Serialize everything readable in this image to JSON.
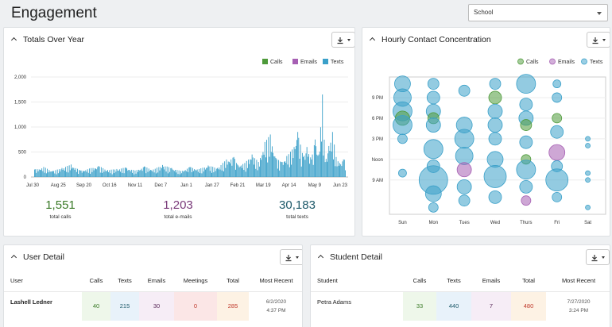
{
  "page": {
    "title": "Engagement"
  },
  "filter": {
    "selected": "School"
  },
  "totals_card": {
    "title": "Totals Over Year",
    "stats": [
      {
        "value": "1,551",
        "label": "total calls",
        "color": "#3a7a27"
      },
      {
        "value": "1,203",
        "label": "total e-mails",
        "color": "#7a3a7a"
      },
      {
        "value": "30,183",
        "label": "total texts",
        "color": "#1e5a6a"
      }
    ]
  },
  "hourly_card": {
    "title": "Hourly Contact Concentration"
  },
  "user_detail": {
    "title": "User Detail",
    "headers": [
      "User",
      "Calls",
      "Texts",
      "Emails",
      "Meetings",
      "Total",
      "Most Recent"
    ],
    "rows": [
      {
        "name": "Lashell Ledner",
        "calls": "40",
        "texts": "215",
        "emails": "30",
        "meetings": "0",
        "total": "285",
        "recent_date": "6/2/2020",
        "recent_time": "4:37 PM"
      }
    ]
  },
  "student_detail": {
    "title": "Student Detail",
    "headers": [
      "Student",
      "Calls",
      "Texts",
      "Emails",
      "Total",
      "Most Recent"
    ],
    "rows": [
      {
        "name": "Petra Adams",
        "calls": "33",
        "texts": "440",
        "emails": "7",
        "total": "480",
        "recent_date": "7/27/2020",
        "recent_time": "3:24 PM"
      }
    ]
  },
  "colors": {
    "calls": "#4e9a3a",
    "emails": "#a65fb3",
    "texts": "#3aa0c9"
  },
  "chart_data": [
    {
      "type": "bar",
      "title": "",
      "legend": [
        "Calls",
        "Emails",
        "Texts"
      ],
      "legend_position": "top-right",
      "x_tick_labels": [
        "Jul 30",
        "Aug 25",
        "Sep 20",
        "Oct 16",
        "Nov 11",
        "Dec 7",
        "Jan 1",
        "Jan 27",
        "Feb 21",
        "Mar 19",
        "Apr 14",
        "May 9",
        "Jun 23"
      ],
      "y_tick_labels": [
        "0",
        "500",
        "1,000",
        "1,500",
        "2,000"
      ],
      "ylim": [
        0,
        2000
      ],
      "x_days": 340,
      "series": [
        {
          "name": "Texts",
          "values": [
            {
              "x": 0,
              "y": 150
            },
            {
              "x": 10,
              "y": 200
            },
            {
              "x": 20,
              "y": 120
            },
            {
              "x": 30,
              "y": 180
            },
            {
              "x": 40,
              "y": 250
            },
            {
              "x": 50,
              "y": 130
            },
            {
              "x": 60,
              "y": 170
            },
            {
              "x": 70,
              "y": 220
            },
            {
              "x": 80,
              "y": 140
            },
            {
              "x": 90,
              "y": 160
            },
            {
              "x": 100,
              "y": 190
            },
            {
              "x": 110,
              "y": 130
            },
            {
              "x": 120,
              "y": 210
            },
            {
              "x": 130,
              "y": 150
            },
            {
              "x": 140,
              "y": 240
            },
            {
              "x": 150,
              "y": 180
            },
            {
              "x": 160,
              "y": 120
            },
            {
              "x": 170,
              "y": 200
            },
            {
              "x": 180,
              "y": 160
            },
            {
              "x": 190,
              "y": 230
            },
            {
              "x": 200,
              "y": 180
            },
            {
              "x": 210,
              "y": 350
            },
            {
              "x": 218,
              "y": 400
            },
            {
              "x": 222,
              "y": 250
            },
            {
              "x": 230,
              "y": 280
            },
            {
              "x": 238,
              "y": 450
            },
            {
              "x": 245,
              "y": 300
            },
            {
              "x": 252,
              "y": 700
            },
            {
              "x": 258,
              "y": 850
            },
            {
              "x": 264,
              "y": 380
            },
            {
              "x": 270,
              "y": 300
            },
            {
              "x": 276,
              "y": 420
            },
            {
              "x": 282,
              "y": 550
            },
            {
              "x": 288,
              "y": 900
            },
            {
              "x": 294,
              "y": 400
            },
            {
              "x": 298,
              "y": 600
            },
            {
              "x": 303,
              "y": 350
            },
            {
              "x": 307,
              "y": 750
            },
            {
              "x": 311,
              "y": 450
            },
            {
              "x": 315,
              "y": 1650
            },
            {
              "x": 318,
              "y": 300
            },
            {
              "x": 322,
              "y": 620
            },
            {
              "x": 326,
              "y": 900
            },
            {
              "x": 330,
              "y": 400
            },
            {
              "x": 334,
              "y": 280
            },
            {
              "x": 338,
              "y": 350
            }
          ]
        }
      ]
    },
    {
      "type": "scatter",
      "title": "",
      "legend": [
        "Calls",
        "Emails",
        "Texts"
      ],
      "legend_position": "top-right",
      "x_categories": [
        "Sun",
        "Mon",
        "Tues",
        "Wed",
        "Thurs",
        "Fri",
        "Sat"
      ],
      "y_tick_labels": [
        "9 AM",
        "Noon",
        "3 PM",
        "6 PM",
        "9 PM"
      ],
      "y_tick_hours": [
        9,
        12,
        15,
        18,
        21
      ],
      "points": [
        {
          "series": "Texts",
          "day": 0,
          "hour": 23,
          "size": 10
        },
        {
          "series": "Texts",
          "day": 0,
          "hour": 21,
          "size": 11
        },
        {
          "series": "Texts",
          "day": 0,
          "hour": 19,
          "size": 12
        },
        {
          "series": "Calls",
          "day": 0,
          "hour": 18,
          "size": 9
        },
        {
          "series": "Texts",
          "day": 0,
          "hour": 17,
          "size": 12
        },
        {
          "series": "Texts",
          "day": 0,
          "hour": 15,
          "size": 6
        },
        {
          "series": "Texts",
          "day": 0,
          "hour": 10,
          "size": 5
        },
        {
          "series": "Texts",
          "day": 1,
          "hour": 23,
          "size": 7
        },
        {
          "series": "Texts",
          "day": 1,
          "hour": 21,
          "size": 8
        },
        {
          "series": "Texts",
          "day": 1,
          "hour": 19,
          "size": 9
        },
        {
          "series": "Calls",
          "day": 1,
          "hour": 18,
          "size": 7
        },
        {
          "series": "Texts",
          "day": 1,
          "hour": 17,
          "size": 9
        },
        {
          "series": "Texts",
          "day": 1,
          "hour": 13.5,
          "size": 12
        },
        {
          "series": "Texts",
          "day": 1,
          "hour": 11,
          "size": 8
        },
        {
          "series": "Texts",
          "day": 1,
          "hour": 9,
          "size": 18
        },
        {
          "series": "Texts",
          "day": 1,
          "hour": 7,
          "size": 10
        },
        {
          "series": "Texts",
          "day": 1,
          "hour": 5,
          "size": 6
        },
        {
          "series": "Texts",
          "day": 2,
          "hour": 22,
          "size": 7
        },
        {
          "series": "Texts",
          "day": 2,
          "hour": 17,
          "size": 10
        },
        {
          "series": "Texts",
          "day": 2,
          "hour": 15,
          "size": 12
        },
        {
          "series": "Texts",
          "day": 2,
          "hour": 12.5,
          "size": 11
        },
        {
          "series": "Emails",
          "day": 2,
          "hour": 10.5,
          "size": 9
        },
        {
          "series": "Texts",
          "day": 2,
          "hour": 8,
          "size": 9
        },
        {
          "series": "Texts",
          "day": 2,
          "hour": 6,
          "size": 7
        },
        {
          "series": "Texts",
          "day": 3,
          "hour": 23,
          "size": 7
        },
        {
          "series": "Calls",
          "day": 3,
          "hour": 21,
          "size": 8
        },
        {
          "series": "Texts",
          "day": 3,
          "hour": 19,
          "size": 9
        },
        {
          "series": "Texts",
          "day": 3,
          "hour": 17,
          "size": 9
        },
        {
          "series": "Texts",
          "day": 3,
          "hour": 15,
          "size": 8
        },
        {
          "series": "Texts",
          "day": 3,
          "hour": 12,
          "size": 10
        },
        {
          "series": "Texts",
          "day": 3,
          "hour": 9.5,
          "size": 14
        },
        {
          "series": "Texts",
          "day": 3,
          "hour": 6.5,
          "size": 8
        },
        {
          "series": "Texts",
          "day": 4,
          "hour": 23,
          "size": 12
        },
        {
          "series": "Texts",
          "day": 4,
          "hour": 20,
          "size": 8
        },
        {
          "series": "Texts",
          "day": 4,
          "hour": 18,
          "size": 9
        },
        {
          "series": "Calls",
          "day": 4,
          "hour": 17,
          "size": 7
        },
        {
          "series": "Texts",
          "day": 4,
          "hour": 14.5,
          "size": 8
        },
        {
          "series": "Calls",
          "day": 4,
          "hour": 12,
          "size": 6
        },
        {
          "series": "Texts",
          "day": 4,
          "hour": 10.5,
          "size": 12
        },
        {
          "series": "Texts",
          "day": 4,
          "hour": 8,
          "size": 8
        },
        {
          "series": "Emails",
          "day": 4,
          "hour": 6,
          "size": 6
        },
        {
          "series": "Texts",
          "day": 5,
          "hour": 23,
          "size": 5
        },
        {
          "series": "Texts",
          "day": 5,
          "hour": 21,
          "size": 6
        },
        {
          "series": "Calls",
          "day": 5,
          "hour": 18,
          "size": 6
        },
        {
          "series": "Texts",
          "day": 5,
          "hour": 16,
          "size": 8
        },
        {
          "series": "Emails",
          "day": 5,
          "hour": 13,
          "size": 10
        },
        {
          "series": "Texts",
          "day": 5,
          "hour": 11,
          "size": 7
        },
        {
          "series": "Texts",
          "day": 5,
          "hour": 9,
          "size": 14
        },
        {
          "series": "Texts",
          "day": 5,
          "hour": 6.5,
          "size": 6
        },
        {
          "series": "Texts",
          "day": 6,
          "hour": 15,
          "size": 3
        },
        {
          "series": "Texts",
          "day": 6,
          "hour": 14,
          "size": 3
        },
        {
          "series": "Texts",
          "day": 6,
          "hour": 10,
          "size": 3
        },
        {
          "series": "Texts",
          "day": 6,
          "hour": 9,
          "size": 3
        },
        {
          "series": "Texts",
          "day": 6,
          "hour": 5,
          "size": 3
        }
      ]
    }
  ]
}
